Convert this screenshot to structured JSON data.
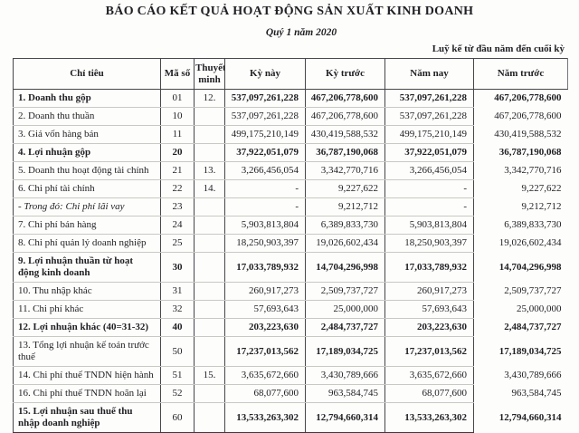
{
  "report": {
    "title": "BÁO CÁO KẾT QUẢ HOẠT ĐỘNG SẢN XUẤT KINH DOANH",
    "subtitle": "Quý 1 năm 2020",
    "cumulative_note": "Luỹ kế từ đầu năm đến cuối kỳ"
  },
  "table": {
    "columns": [
      "Chỉ tiêu",
      "Mã số",
      "Thuyết minh",
      "Kỳ này",
      "Kỳ trước",
      "Năm nay",
      "Năm trước"
    ],
    "rows": [
      {
        "label": "1. Doanh thu gộp",
        "code": "01",
        "note": "12.",
        "ky_nay": "537,097,261,228",
        "ky_truoc": "467,206,778,600",
        "nam_nay": "537,097,261,228",
        "nam_truoc": "467,206,778,600",
        "label_bold": true,
        "values_bold": true
      },
      {
        "label": "2. Doanh thu thuần",
        "code": "10",
        "note": "",
        "ky_nay": "537,097,261,228",
        "ky_truoc": "467,206,778,600",
        "nam_nay": "537,097,261,228",
        "nam_truoc": "467,206,778,600"
      },
      {
        "label": "3. Giá vốn hàng bán",
        "code": "11",
        "note": "",
        "ky_nay": "499,175,210,149",
        "ky_truoc": "430,419,588,532",
        "nam_nay": "499,175,210,149",
        "nam_truoc": "430,419,588,532"
      },
      {
        "label": "4. Lợi nhuận gộp",
        "code": "20",
        "note": "",
        "ky_nay": "37,922,051,079",
        "ky_truoc": "36,787,190,068",
        "nam_nay": "37,922,051,079",
        "nam_truoc": "36,787,190,068",
        "label_bold": true,
        "code_bold": true,
        "values_bold": true
      },
      {
        "label": "5. Doanh thu hoạt động tài chính",
        "code": "21",
        "note": "13.",
        "ky_nay": "3,266,456,054",
        "ky_truoc": "3,342,770,716",
        "nam_nay": "3,266,456,054",
        "nam_truoc": "3,342,770,716"
      },
      {
        "label": "6. Chi phí tài chính",
        "code": "22",
        "note": "14.",
        "ky_nay": "-",
        "ky_truoc": "9,227,622",
        "nam_nay": "-",
        "nam_truoc": "9,227,622"
      },
      {
        "label": "- Trong đó: Chi phí lãi vay",
        "code": "23",
        "note": "",
        "ky_nay": "-",
        "ky_truoc": "9,212,712",
        "nam_nay": "-",
        "nam_truoc": "9,212,712",
        "italic": true
      },
      {
        "label": "7. Chi phí bán hàng",
        "code": "24",
        "note": "",
        "ky_nay": "5,903,813,804",
        "ky_truoc": "6,389,833,730",
        "nam_nay": "5,903,813,804",
        "nam_truoc": "6,389,833,730"
      },
      {
        "label": "8. Chi phí quản lý doanh nghiệp",
        "code": "25",
        "note": "",
        "ky_nay": "18,250,903,397",
        "ky_truoc": "19,026,602,434",
        "nam_nay": "18,250,903,397",
        "nam_truoc": "19,026,602,434"
      },
      {
        "label": "9. Lợi nhuận thuần từ hoạt động kinh doanh",
        "code": "30",
        "note": "",
        "ky_nay": "17,033,789,932",
        "ky_truoc": "14,704,296,998",
        "nam_nay": "17,033,789,932",
        "nam_truoc": "14,704,296,998",
        "label_bold": true,
        "code_bold": true,
        "values_bold": true,
        "tall": true
      },
      {
        "label": "10. Thu nhập khác",
        "code": "31",
        "note": "",
        "ky_nay": "260,917,273",
        "ky_truoc": "2,509,737,727",
        "nam_nay": "260,917,273",
        "nam_truoc": "2,509,737,727"
      },
      {
        "label": "11. Chi phí khác",
        "code": "32",
        "note": "",
        "ky_nay": "57,693,643",
        "ky_truoc": "25,000,000",
        "nam_nay": "57,693,643",
        "nam_truoc": "25,000,000"
      },
      {
        "label": "12. Lợi nhuận khác (40=31-32)",
        "code": "40",
        "note": "",
        "ky_nay": "203,223,630",
        "ky_truoc": "2,484,737,727",
        "nam_nay": "203,223,630",
        "nam_truoc": "2,484,737,727",
        "label_bold": true,
        "code_bold": true,
        "values_bold": true
      },
      {
        "label": "13. Tổng lợi nhuận kế toán trước thuế",
        "code": "50",
        "note": "",
        "ky_nay": "17,237,013,562",
        "ky_truoc": "17,189,034,725",
        "nam_nay": "17,237,013,562",
        "nam_truoc": "17,189,034,725",
        "values_bold": true
      },
      {
        "label": "14. Chi phí thuế TNDN hiện hành",
        "code": "51",
        "note": "15.",
        "ky_nay": "3,635,672,660",
        "ky_truoc": "3,430,789,666",
        "nam_nay": "3,635,672,660",
        "nam_truoc": "3,430,789,666"
      },
      {
        "label": "16. Chi phí thuế TNDN hoãn lại",
        "code": "52",
        "note": "",
        "ky_nay": "68,077,600",
        "ky_truoc": "963,584,745",
        "nam_nay": "68,077,600",
        "nam_truoc": "963,584,745"
      },
      {
        "label": "15. Lợi nhuận sau thuế thu nhập doanh nghiệp",
        "code": "60",
        "note": "",
        "ky_nay": "13,533,263,302",
        "ky_truoc": "12,794,660,314",
        "nam_nay": "13,533,263,302",
        "nam_truoc": "12,794,660,314",
        "label_bold": true,
        "values_bold": true,
        "tall": true
      }
    ]
  }
}
